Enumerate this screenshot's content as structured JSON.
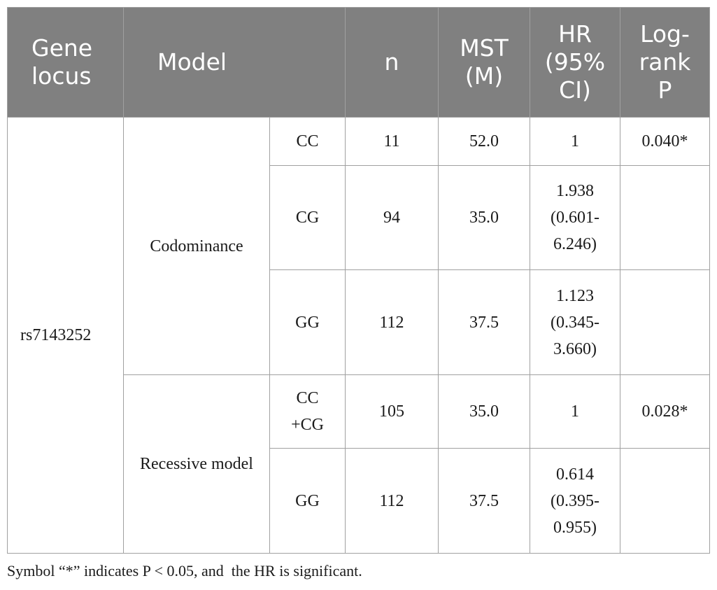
{
  "table": {
    "header": [
      "Gene locus",
      "Model",
      "n",
      "MST (M)",
      "HR (95% CI)",
      "Log-rank P"
    ],
    "gene_locus": "rs7143252",
    "groups": [
      {
        "model": "Codominance",
        "rows": [
          {
            "genotype": "CC",
            "n": "11",
            "mst": "52.0",
            "hr": "1",
            "p": "0.040*"
          },
          {
            "genotype": "CG",
            "n": "94",
            "mst": "35.0",
            "hr": "1.938 (0.601-6.246)"
          },
          {
            "genotype": "GG",
            "n": "112",
            "mst": "37.5",
            "hr": "1.123 (0.345-3.660)"
          }
        ]
      },
      {
        "model": "Recessive model",
        "rows": [
          {
            "genotype": "CC +CG",
            "n": "105",
            "mst": "35.0",
            "hr": "1",
            "p": "0.028*"
          },
          {
            "genotype": "GG",
            "n": "112",
            "mst": "37.5",
            "hr": "0.614 (0.395-0.955)"
          }
        ]
      }
    ],
    "footnote": "Symbol “*” indicates P < 0.05, and  the HR is significant."
  }
}
